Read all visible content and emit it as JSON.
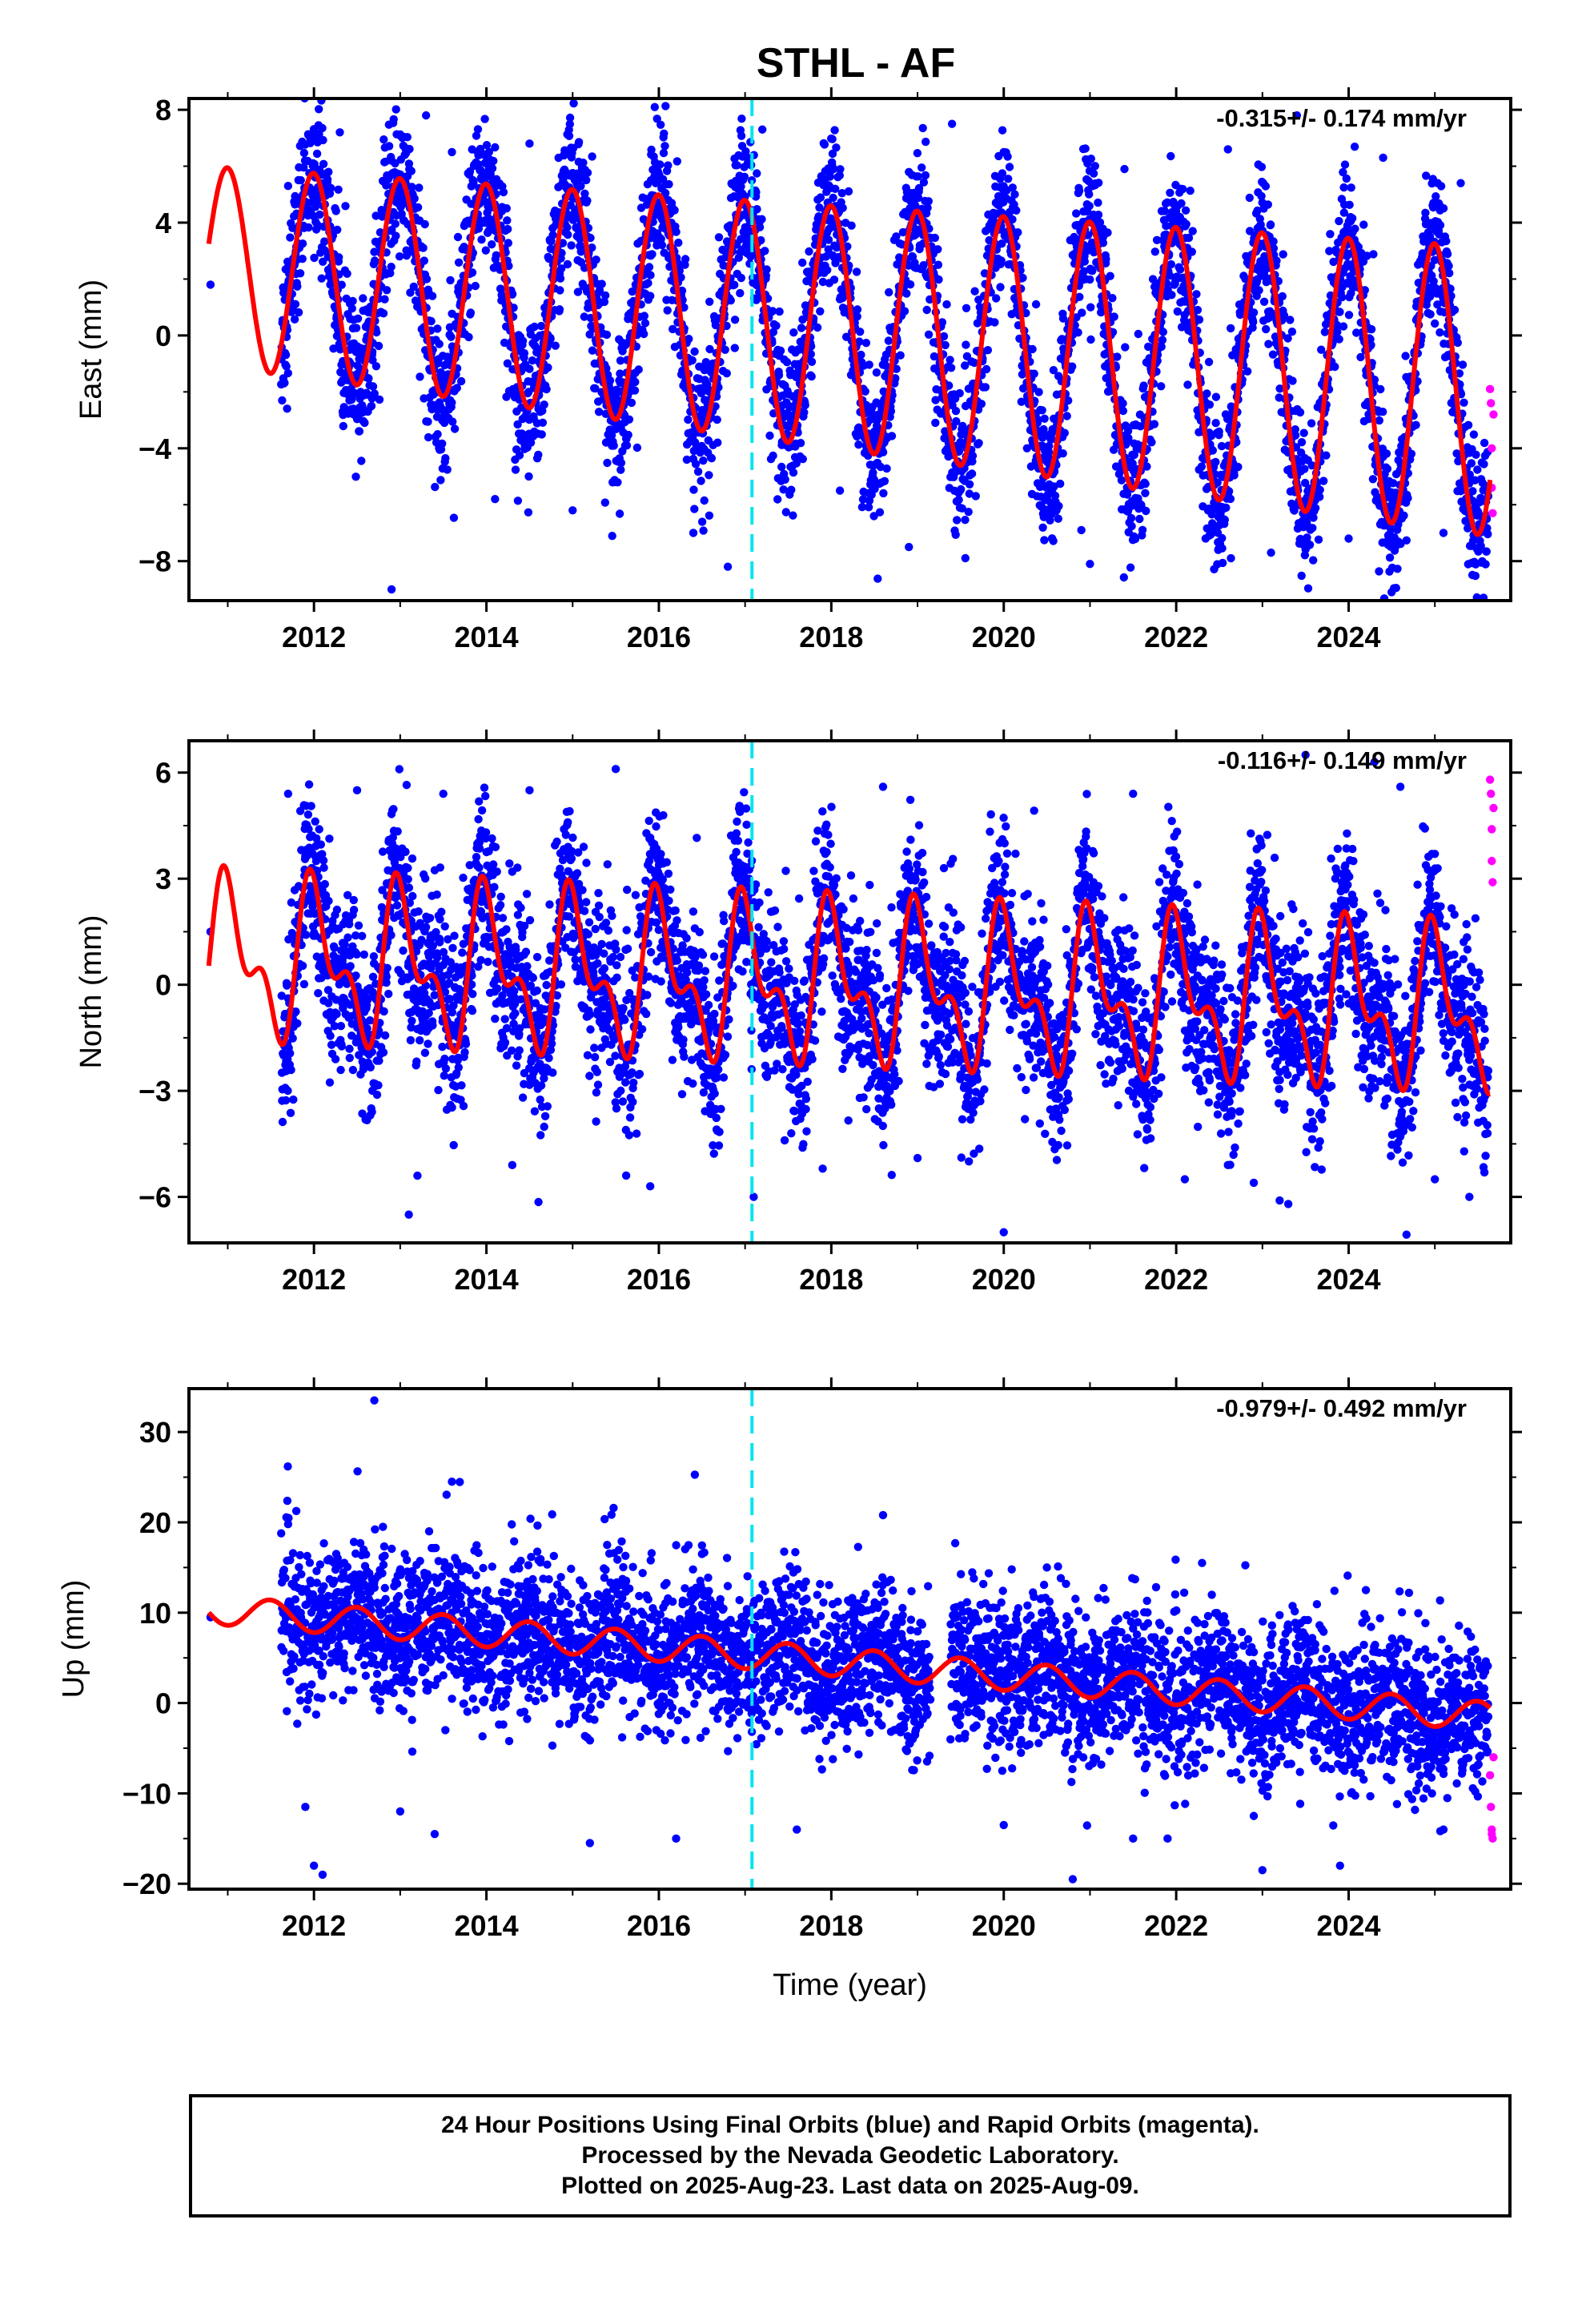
{
  "title": "STHL - AF",
  "colors": {
    "final_orbits": "#0000ff",
    "rapid_orbits": "#ff00ff",
    "model_fit": "#ff0000",
    "event_line": "#00e5ee",
    "frame": "#000000"
  },
  "chart_data": [
    {
      "type": "scatter",
      "panel": "east",
      "ylabel": "East (mm)",
      "rate_label": "-0.315+/- 0.174 mm/yr",
      "xlim": [
        2010.55,
        2025.88
      ],
      "ylim": [
        -9.4,
        8.4
      ],
      "yticks": [
        -8,
        -4,
        0,
        4,
        8
      ],
      "xticks": [
        2012,
        2014,
        2016,
        2018,
        2020,
        2022,
        2024
      ],
      "event_line_x": 2017.08,
      "series": [
        {
          "name": "Final Orbits",
          "color": "#0000ff",
          "points": [
            [
              2010.8,
              1.8
            ],
            [
              2011.7,
              5.3
            ],
            [
              2012.3,
              7.2
            ],
            [
              2012.9,
              -9.0
            ],
            [
              2013.3,
              7.8
            ],
            [
              2013.6,
              6.5
            ],
            [
              2014.1,
              -5.8
            ],
            [
              2014.5,
              6.8
            ],
            [
              2015.0,
              -6.2
            ],
            [
              2016.4,
              -7.0
            ],
            [
              2016.8,
              -8.2
            ],
            [
              2017.2,
              7.3
            ],
            [
              2018.1,
              -5.5
            ],
            [
              2018.9,
              -7.5
            ],
            [
              2019.4,
              7.5
            ],
            [
              2020.0,
              6.5
            ],
            [
              2020.9,
              -6.9
            ],
            [
              2021.0,
              -8.1
            ],
            [
              2021.4,
              5.9
            ],
            [
              2022.6,
              6.6
            ],
            [
              2023.1,
              -7.7
            ],
            [
              2023.4,
              7.8
            ],
            [
              2024.0,
              -7.2
            ],
            [
              2024.4,
              6.3
            ],
            [
              2025.1,
              -7.0
            ],
            [
              2025.3,
              5.4
            ]
          ]
        }
      ],
      "rapid_points": [
        [
          2025.64,
          -1.9
        ],
        [
          2025.65,
          -2.4
        ],
        [
          2025.66,
          -4.0
        ],
        [
          2025.66,
          -5.4
        ],
        [
          2025.67,
          -6.3
        ],
        [
          2025.68,
          -2.8
        ]
      ],
      "model": {
        "offset": 0.3,
        "trend_mm_per_yr": -0.3,
        "annual_amplitude": 3.6,
        "amplitude_growth_per_yr": 0.03,
        "annual_phase_deg": 20,
        "semiannual_amplitude": 0.0,
        "semiannual_phase_deg": 0
      }
    },
    {
      "type": "scatter",
      "panel": "north",
      "ylabel": "North (mm)",
      "rate_label": "-0.116+/- 0.149 mm/yr",
      "xlim": [
        2010.55,
        2025.88
      ],
      "ylim": [
        -7.3,
        6.9
      ],
      "yticks": [
        -6,
        -3,
        0,
        3,
        6
      ],
      "xticks": [
        2012,
        2014,
        2016,
        2018,
        2020,
        2022,
        2024
      ],
      "event_line_x": 2017.08,
      "series": [
        {
          "name": "Final Orbits",
          "color": "#0000ff",
          "points": [
            [
              2010.8,
              1.5
            ],
            [
              2011.7,
              5.4
            ],
            [
              2012.5,
              5.5
            ],
            [
              2013.1,
              -6.5
            ],
            [
              2013.2,
              -5.4
            ],
            [
              2013.5,
              5.4
            ],
            [
              2014.3,
              -5.1
            ],
            [
              2014.5,
              5.5
            ],
            [
              2015.5,
              6.1
            ],
            [
              2015.9,
              -5.7
            ],
            [
              2017.1,
              -6.0
            ],
            [
              2017.9,
              -5.2
            ],
            [
              2018.6,
              5.6
            ],
            [
              2019.0,
              -4.9
            ],
            [
              2020.0,
              -7.0
            ],
            [
              2021.5,
              5.4
            ],
            [
              2022.1,
              -5.5
            ],
            [
              2022.6,
              -5.1
            ],
            [
              2022.9,
              -5.6
            ],
            [
              2023.2,
              -6.1
            ],
            [
              2023.3,
              -6.2
            ],
            [
              2023.5,
              6.5
            ],
            [
              2024.3,
              6.3
            ],
            [
              2024.6,
              5.6
            ],
            [
              2025.0,
              -5.5
            ],
            [
              2025.4,
              -6.0
            ]
          ]
        }
      ],
      "rapid_points": [
        [
          2025.64,
          5.8
        ],
        [
          2025.65,
          5.4
        ],
        [
          2025.66,
          4.4
        ],
        [
          2025.66,
          3.5
        ],
        [
          2025.67,
          2.9
        ],
        [
          2025.68,
          5.0
        ]
      ],
      "model": {
        "offset": 0.0,
        "trend_mm_per_yr": -0.1,
        "annual_amplitude": 1.8,
        "amplitude_growth_per_yr": 0.0,
        "annual_phase_deg": 10,
        "semiannual_amplitude": 1.1,
        "semiannual_phase_deg": 0
      }
    },
    {
      "type": "scatter",
      "panel": "up",
      "ylabel": "Up (mm)",
      "xlabel": "Time (year)",
      "rate_label": "-0.979+/- 0.492 mm/yr",
      "xlim": [
        2010.55,
        2025.88
      ],
      "ylim": [
        -20.6,
        34.8
      ],
      "yticks": [
        -20,
        -10,
        0,
        10,
        20,
        30
      ],
      "xticks": [
        2012,
        2014,
        2016,
        2018,
        2020,
        2022,
        2024
      ],
      "event_line_x": 2017.08,
      "series": [
        {
          "name": "Final Orbits",
          "color": "#0000ff",
          "points": [
            [
              2010.8,
              9.5
            ],
            [
              2011.7,
              19.8
            ],
            [
              2011.9,
              -11.5
            ],
            [
              2012.0,
              -18.0
            ],
            [
              2012.1,
              -19.0
            ],
            [
              2012.7,
              33.5
            ],
            [
              2012.8,
              19.5
            ],
            [
              2013.0,
              -12.0
            ],
            [
              2013.6,
              24.5
            ],
            [
              2013.4,
              -14.5
            ],
            [
              2015.2,
              -15.5
            ],
            [
              2015.4,
              17.5
            ],
            [
              2016.2,
              -15.0
            ],
            [
              2016.5,
              16.5
            ],
            [
              2018.6,
              20.8
            ],
            [
              2017.6,
              -14.0
            ],
            [
              2020.0,
              -13.5
            ],
            [
              2020.5,
              15.0
            ],
            [
              2020.8,
              -19.5
            ],
            [
              2021.5,
              -15.0
            ],
            [
              2021.9,
              -15.0
            ],
            [
              2022.3,
              15.5
            ],
            [
              2022.9,
              -12.5
            ],
            [
              2023.0,
              -18.5
            ],
            [
              2023.9,
              -18.0
            ],
            [
              2024.2,
              12.5
            ],
            [
              2024.7,
              12.2
            ],
            [
              2025.1,
              -14.0
            ]
          ]
        }
      ],
      "rapid_points": [
        [
          2025.64,
          -8.0
        ],
        [
          2025.65,
          -11.5
        ],
        [
          2025.66,
          -14.0
        ],
        [
          2025.66,
          -14.5
        ],
        [
          2025.67,
          -15.0
        ],
        [
          2025.68,
          -6.0
        ]
      ],
      "model": {
        "offset": 4.6,
        "trend_mm_per_yr": -0.8,
        "annual_amplitude": 1.6,
        "amplitude_growth_per_yr": 0.0,
        "annual_phase_deg": 200,
        "semiannual_amplitude": 0.0,
        "semiannual_phase_deg": 0
      }
    }
  ],
  "footer": {
    "line1": "24 Hour Positions Using Final Orbits (blue) and Rapid Orbits (magenta).",
    "line2": "Processed by the Nevada Geodetic Laboratory.",
    "line3": "Plotted on 2025-Aug-23. Last data on 2025-Aug-09."
  }
}
